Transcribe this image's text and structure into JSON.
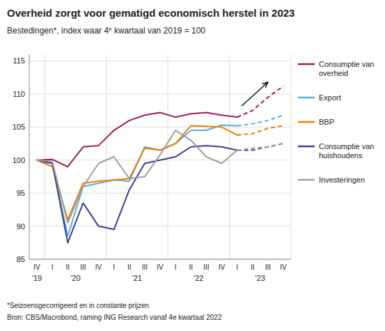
{
  "chart_data": {
    "type": "line",
    "title": "Overheid zorgt voor gematigd economisch herstel in 2023",
    "subtitle": [
      "Bestedingen*, index waar 4",
      "e",
      " kwartaal van 2019 = 100"
    ],
    "footnotes": [
      "*Seizoensgecorrigeerd en in constante prijzen",
      "Bron: CBS/Macrobond, raming ING Research vanaf 4e kwartaal  2022"
    ],
    "categories": [
      "IV",
      "I",
      "II",
      "III",
      "IV",
      "I",
      "II",
      "III",
      "IV",
      "I",
      "II",
      "III",
      "IV",
      "I",
      "II",
      "III",
      "IV"
    ],
    "year_labels": [
      "'19",
      "'20",
      "'21",
      "'22",
      "'23"
    ],
    "ylim": [
      85,
      116
    ],
    "yticks": [
      85,
      90,
      95,
      100,
      105,
      110,
      115
    ],
    "grid": true,
    "legend": "right",
    "series": [
      {
        "name": "Consumptie van\noverheid",
        "color": "#9b1b5a",
        "values": [
          100.0,
          100.1,
          99.0,
          102.0,
          102.2,
          104.5,
          106.0,
          106.8,
          107.2,
          106.5,
          107.0,
          107.2,
          106.8,
          106.5,
          null,
          null,
          null
        ],
        "forecast": [
          null,
          null,
          null,
          null,
          null,
          null,
          null,
          null,
          null,
          null,
          null,
          null,
          null,
          106.5,
          107.5,
          109.5,
          111.2
        ]
      },
      {
        "name": "Export",
        "color": "#5baddb",
        "values": [
          100.0,
          99.5,
          88.5,
          96.0,
          96.5,
          97.0,
          96.8,
          102.0,
          101.5,
          102.5,
          104.5,
          104.5,
          105.3,
          105.2,
          null,
          null,
          null
        ],
        "forecast": [
          null,
          null,
          null,
          null,
          null,
          null,
          null,
          null,
          null,
          null,
          null,
          null,
          null,
          105.2,
          105.5,
          106.0,
          106.8
        ]
      },
      {
        "name": "BBP",
        "color": "#f07d00",
        "values": [
          100.0,
          99.0,
          91.0,
          96.5,
          96.8,
          97.0,
          97.2,
          101.8,
          101.5,
          102.5,
          105.2,
          105.1,
          105.0,
          103.8,
          null,
          null,
          null
        ],
        "forecast": [
          null,
          null,
          null,
          null,
          null,
          null,
          null,
          null,
          null,
          null,
          null,
          null,
          null,
          103.8,
          104.0,
          104.8,
          105.2
        ]
      },
      {
        "name": "Consumptie van\nhuishoudens",
        "color": "#3d3d8f",
        "values": [
          100.0,
          99.5,
          87.5,
          93.5,
          90.0,
          89.5,
          95.5,
          99.5,
          100.0,
          100.5,
          102.0,
          102.2,
          102.0,
          101.5,
          null,
          null,
          null
        ],
        "forecast": [
          null,
          null,
          null,
          null,
          null,
          null,
          null,
          null,
          null,
          null,
          null,
          null,
          null,
          101.5,
          101.5,
          102.0,
          102.5
        ]
      },
      {
        "name": "Investeringen",
        "color": "#9e9e9e",
        "values": [
          100.0,
          99.8,
          90.5,
          96.0,
          99.5,
          100.5,
          97.2,
          97.5,
          100.8,
          104.5,
          103.0,
          100.5,
          99.5,
          101.5,
          null,
          null,
          null
        ],
        "forecast": [
          null,
          null,
          null,
          null,
          null,
          null,
          null,
          null,
          null,
          null,
          null,
          null,
          null,
          101.5,
          101.8,
          102.0,
          102.5
        ]
      }
    ],
    "arrow": {
      "tail": [
        13.3,
        108.2
      ],
      "head": [
        15.0,
        111.8
      ]
    }
  }
}
